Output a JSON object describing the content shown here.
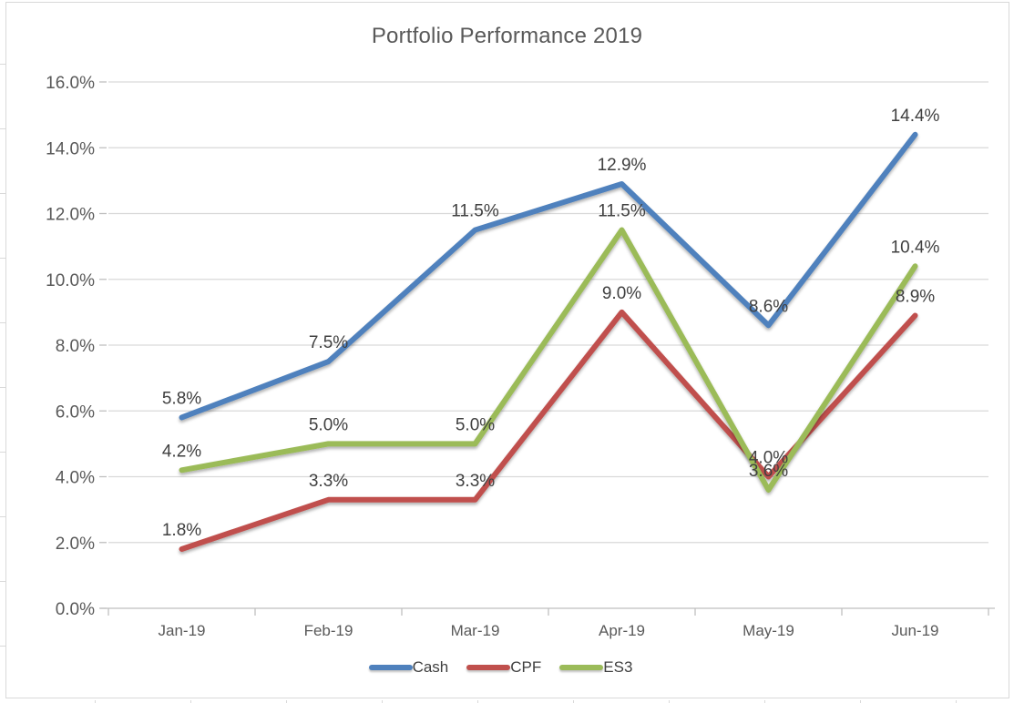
{
  "chart_data": {
    "type": "line",
    "title": "Portfolio Performance 2019",
    "categories": [
      "Jan-19",
      "Feb-19",
      "Mar-19",
      "Apr-19",
      "May-19",
      "Jun-19"
    ],
    "series": [
      {
        "name": "Cash",
        "color": "#4F81BD",
        "values": [
          5.8,
          7.5,
          11.5,
          12.9,
          8.6,
          14.4
        ],
        "labels": [
          "5.8%",
          "7.5%",
          "11.5%",
          "12.9%",
          "8.6%",
          "14.4%"
        ]
      },
      {
        "name": "CPF",
        "color": "#C0504D",
        "values": [
          1.8,
          3.3,
          3.3,
          9.0,
          4.0,
          8.9
        ],
        "labels": [
          "1.8%",
          "3.3%",
          "3.3%",
          "9.0%",
          "4.0%",
          "8.9%"
        ]
      },
      {
        "name": "ES3",
        "color": "#9BBB59",
        "values": [
          4.2,
          5.0,
          5.0,
          11.5,
          3.6,
          10.4
        ],
        "labels": [
          "4.2%",
          "5.0%",
          "5.0%",
          "11.5%",
          "3.6%",
          "10.4%"
        ]
      }
    ],
    "y_ticks": [
      "0.0%",
      "2.0%",
      "4.0%",
      "6.0%",
      "8.0%",
      "10.0%",
      "12.0%",
      "14.0%",
      "16.0%"
    ],
    "ylim": [
      0,
      16
    ],
    "xlabel": "",
    "ylabel": "",
    "grid": true,
    "legend_position": "bottom",
    "colors": {
      "gridline": "#D9D9D9",
      "axis": "#BFBFBF",
      "axis_text": "#595959",
      "data_label_text": "#404040",
      "title_text": "#595959",
      "background": "#FFFFFF"
    }
  }
}
